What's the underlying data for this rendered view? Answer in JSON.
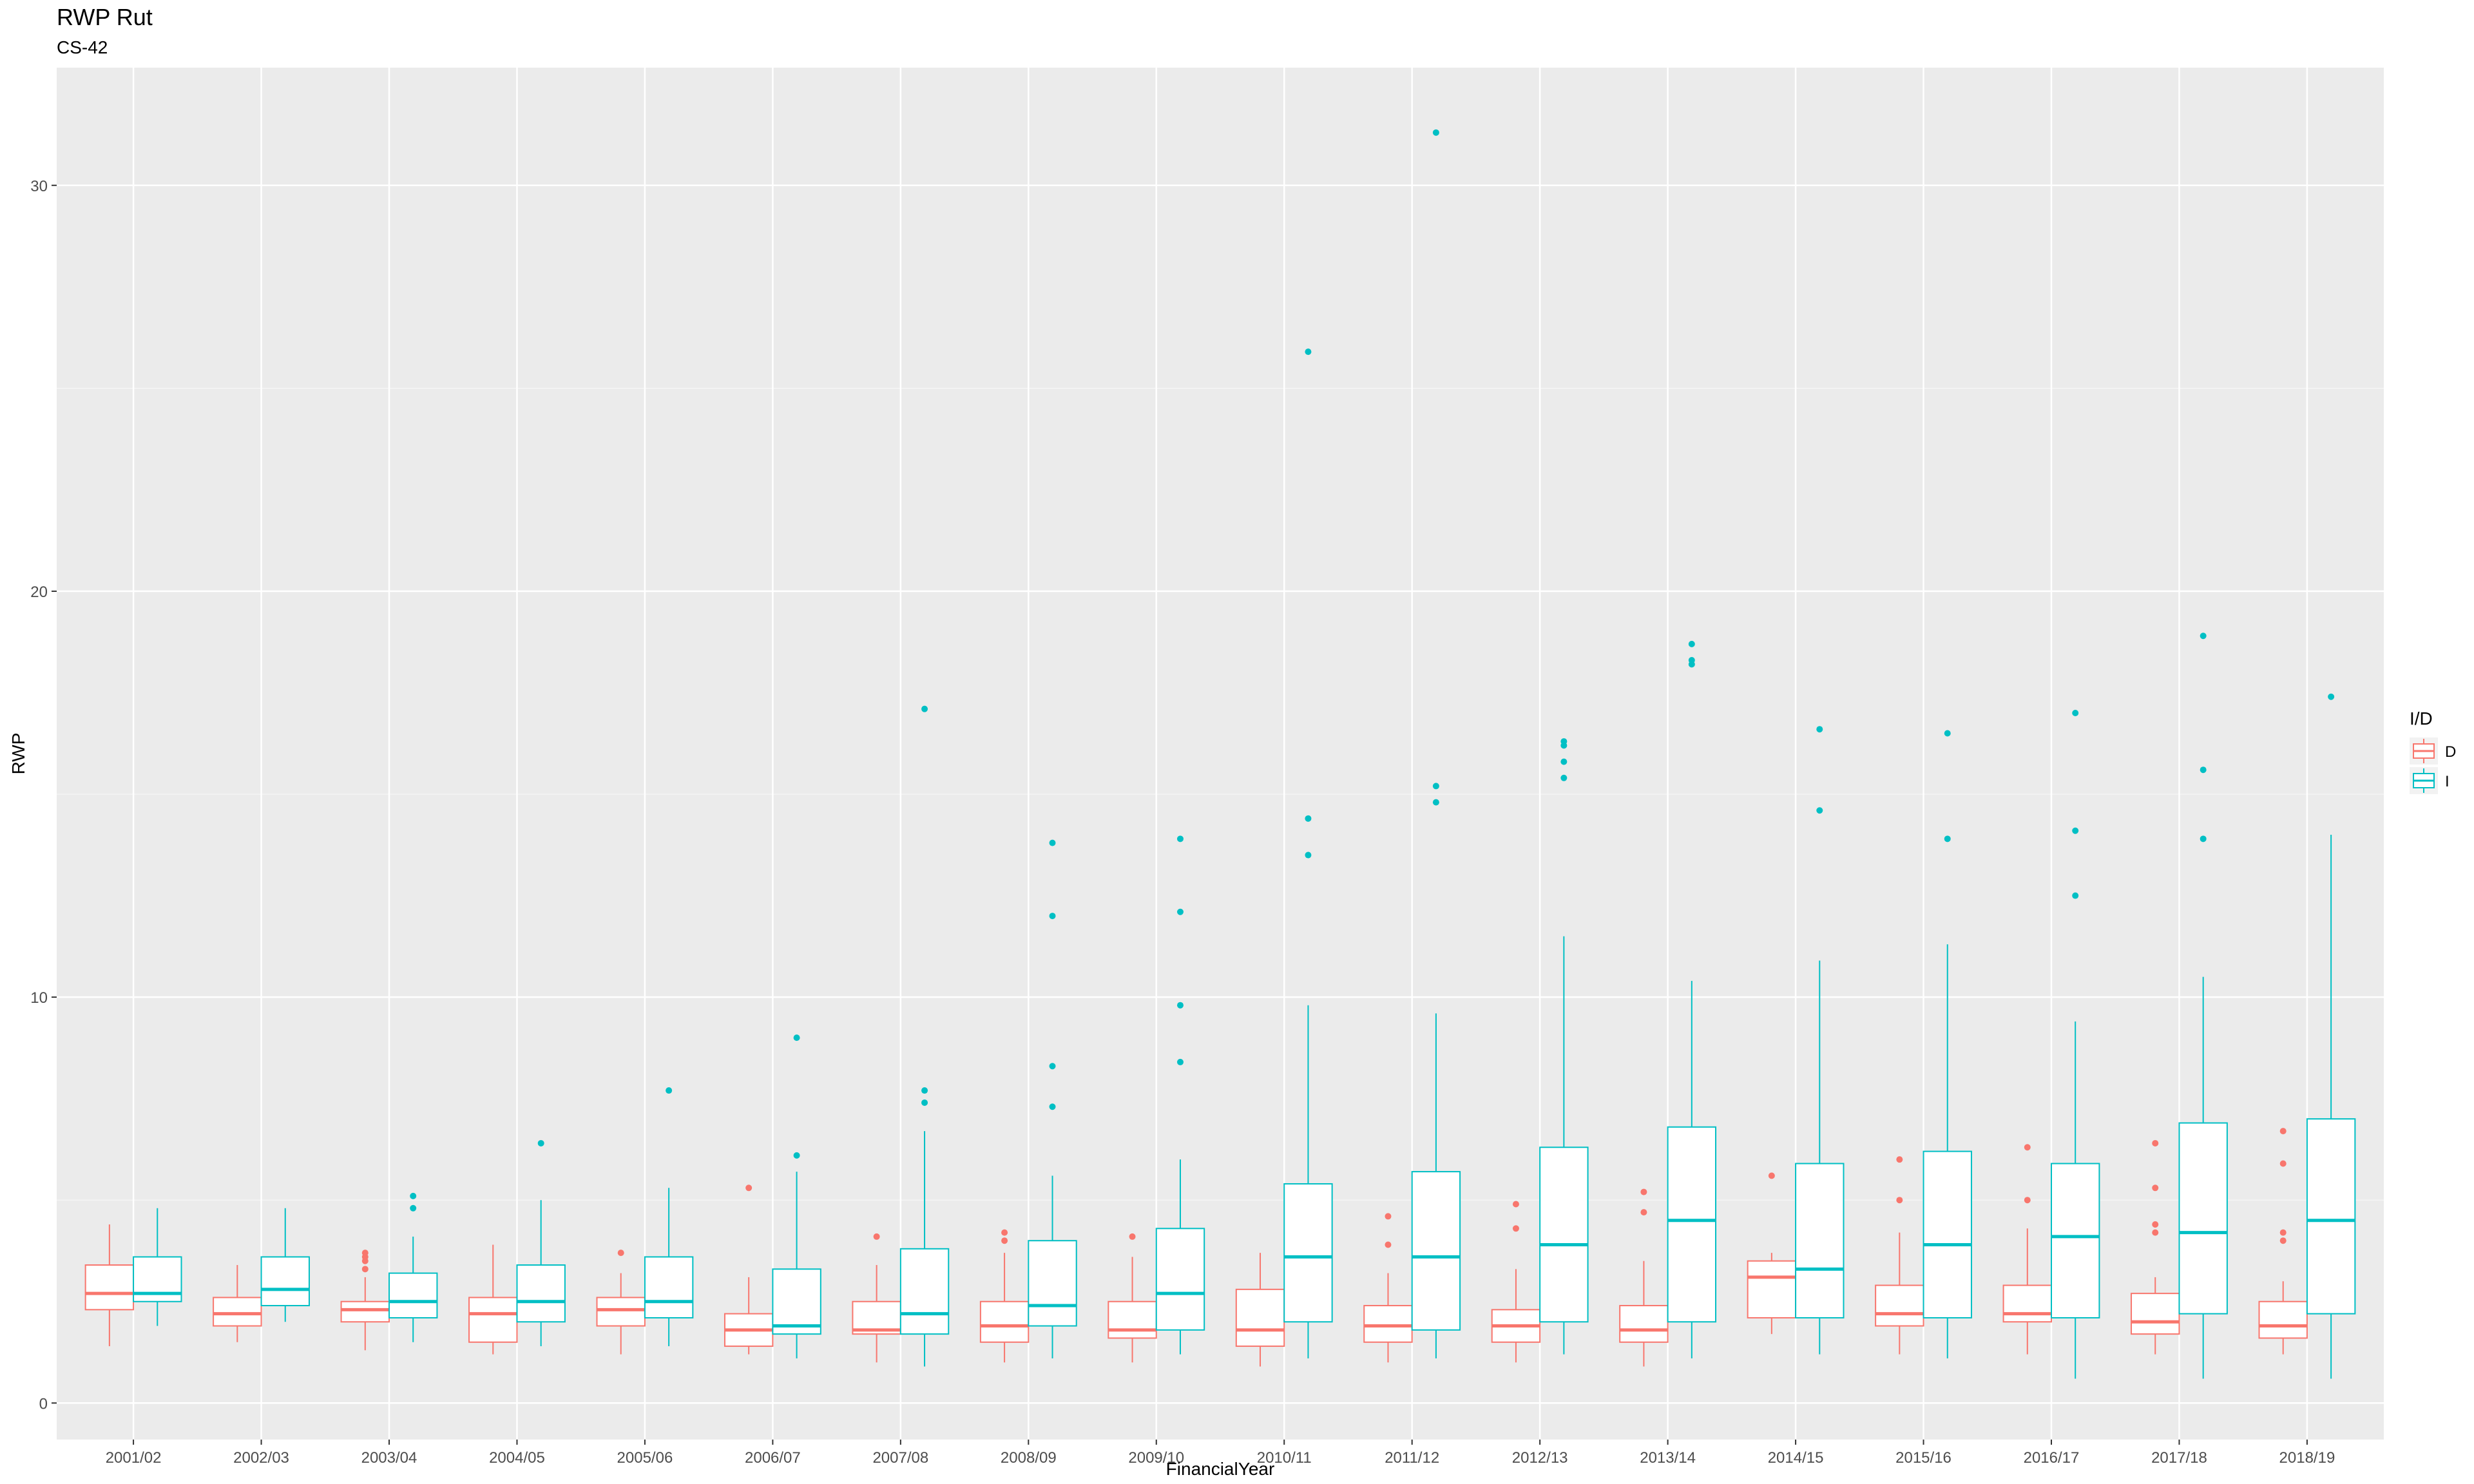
{
  "chart_data": {
    "type": "boxplot",
    "title": "RWP Rut",
    "subtitle": "CS-42",
    "xlabel": "FinancialYear",
    "ylabel": "RWP",
    "ylim": [
      -0.9,
      32.9
    ],
    "yticks": [
      0,
      10,
      20,
      30
    ],
    "grid": true,
    "legend": {
      "title": "I/D",
      "position": "right",
      "entries": [
        "D",
        "I"
      ]
    },
    "colors": {
      "D": "#F8766D",
      "I": "#00BFC4",
      "panel": "#EBEBEB",
      "grid": "#FFFFFF"
    },
    "categories": [
      "2001/02",
      "2002/03",
      "2003/04",
      "2004/05",
      "2005/06",
      "2006/07",
      "2007/08",
      "2008/09",
      "2009/10",
      "2010/11",
      "2011/12",
      "2012/13",
      "2013/14",
      "2014/15",
      "2015/16",
      "2016/17",
      "2017/18",
      "2018/19"
    ],
    "series": [
      {
        "name": "D",
        "boxes": [
          {
            "lw": 1.4,
            "q1": 2.3,
            "med": 2.7,
            "q3": 3.4,
            "hw": 4.4,
            "out": []
          },
          {
            "lw": 1.5,
            "q1": 1.9,
            "med": 2.2,
            "q3": 2.6,
            "hw": 3.4,
            "out": []
          },
          {
            "lw": 1.3,
            "q1": 2.0,
            "med": 2.3,
            "q3": 2.5,
            "hw": 3.1,
            "out": [
              3.3,
              3.5,
              3.6,
              3.7
            ]
          },
          {
            "lw": 1.2,
            "q1": 1.5,
            "med": 2.2,
            "q3": 2.6,
            "hw": 3.9,
            "out": []
          },
          {
            "lw": 1.2,
            "q1": 1.9,
            "med": 2.3,
            "q3": 2.6,
            "hw": 3.2,
            "out": [
              3.7
            ]
          },
          {
            "lw": 1.2,
            "q1": 1.4,
            "med": 1.8,
            "q3": 2.2,
            "hw": 3.1,
            "out": [
              5.3
            ]
          },
          {
            "lw": 1.0,
            "q1": 1.7,
            "med": 1.8,
            "q3": 2.5,
            "hw": 3.4,
            "out": [
              4.1
            ]
          },
          {
            "lw": 1.0,
            "q1": 1.5,
            "med": 1.9,
            "q3": 2.5,
            "hw": 3.7,
            "out": [
              4.0,
              4.2
            ]
          },
          {
            "lw": 1.0,
            "q1": 1.6,
            "med": 1.8,
            "q3": 2.5,
            "hw": 3.6,
            "out": [
              4.1
            ]
          },
          {
            "lw": 0.9,
            "q1": 1.4,
            "med": 1.8,
            "q3": 2.8,
            "hw": 3.7,
            "out": []
          },
          {
            "lw": 1.0,
            "q1": 1.5,
            "med": 1.9,
            "q3": 2.4,
            "hw": 3.2,
            "out": [
              3.9,
              4.6
            ]
          },
          {
            "lw": 1.0,
            "q1": 1.5,
            "med": 1.9,
            "q3": 2.3,
            "hw": 3.3,
            "out": [
              4.3,
              4.9
            ]
          },
          {
            "lw": 0.9,
            "q1": 1.5,
            "med": 1.8,
            "q3": 2.4,
            "hw": 3.5,
            "out": [
              4.7,
              5.2
            ]
          },
          {
            "lw": 1.7,
            "q1": 2.1,
            "med": 3.1,
            "q3": 3.5,
            "hw": 3.7,
            "out": [
              5.6
            ]
          },
          {
            "lw": 1.2,
            "q1": 1.9,
            "med": 2.2,
            "q3": 2.9,
            "hw": 4.2,
            "out": [
              5.0,
              6.0
            ]
          },
          {
            "lw": 1.2,
            "q1": 2.0,
            "med": 2.2,
            "q3": 2.9,
            "hw": 4.3,
            "out": [
              5.0,
              6.3
            ]
          },
          {
            "lw": 1.2,
            "q1": 1.7,
            "med": 2.0,
            "q3": 2.7,
            "hw": 3.1,
            "out": [
              4.2,
              4.4,
              5.3,
              6.4
            ]
          },
          {
            "lw": 1.2,
            "q1": 1.6,
            "med": 1.9,
            "q3": 2.5,
            "hw": 3.0,
            "out": [
              4.0,
              4.2,
              5.9,
              6.7
            ]
          }
        ]
      },
      {
        "name": "I",
        "boxes": [
          {
            "lw": 1.9,
            "q1": 2.5,
            "med": 2.7,
            "q3": 3.6,
            "hw": 4.8,
            "out": []
          },
          {
            "lw": 2.0,
            "q1": 2.4,
            "med": 2.8,
            "q3": 3.6,
            "hw": 4.8,
            "out": []
          },
          {
            "lw": 1.5,
            "q1": 2.1,
            "med": 2.5,
            "q3": 3.2,
            "hw": 4.1,
            "out": [
              4.8,
              5.1
            ]
          },
          {
            "lw": 1.4,
            "q1": 2.0,
            "med": 2.5,
            "q3": 3.4,
            "hw": 5.0,
            "out": [
              6.4
            ]
          },
          {
            "lw": 1.4,
            "q1": 2.1,
            "med": 2.5,
            "q3": 3.6,
            "hw": 5.3,
            "out": [
              7.7
            ]
          },
          {
            "lw": 1.1,
            "q1": 1.7,
            "med": 1.9,
            "q3": 3.3,
            "hw": 5.7,
            "out": [
              6.1,
              9.0
            ]
          },
          {
            "lw": 0.9,
            "q1": 1.7,
            "med": 2.2,
            "q3": 3.8,
            "hw": 6.7,
            "out": [
              7.4,
              7.7,
              17.1
            ]
          },
          {
            "lw": 1.1,
            "q1": 1.9,
            "med": 2.4,
            "q3": 4.0,
            "hw": 5.6,
            "out": [
              7.3,
              8.3,
              12.0,
              13.8
            ]
          },
          {
            "lw": 1.2,
            "q1": 1.8,
            "med": 2.7,
            "q3": 4.3,
            "hw": 6.0,
            "out": [
              8.4,
              9.8,
              12.1,
              13.9
            ]
          },
          {
            "lw": 1.1,
            "q1": 2.0,
            "med": 3.6,
            "q3": 5.4,
            "hw": 9.8,
            "out": [
              13.5,
              14.4,
              25.9
            ]
          },
          {
            "lw": 1.1,
            "q1": 1.8,
            "med": 3.6,
            "q3": 5.7,
            "hw": 9.6,
            "out": [
              14.8,
              15.2,
              31.3
            ]
          },
          {
            "lw": 1.2,
            "q1": 2.0,
            "med": 3.9,
            "q3": 6.3,
            "hw": 11.5,
            "out": [
              15.4,
              15.8,
              16.2,
              16.3
            ]
          },
          {
            "lw": 1.1,
            "q1": 2.0,
            "med": 4.5,
            "q3": 6.8,
            "hw": 10.4,
            "out": [
              18.2,
              18.3,
              18.7
            ]
          },
          {
            "lw": 1.2,
            "q1": 2.1,
            "med": 3.3,
            "q3": 5.9,
            "hw": 10.9,
            "out": [
              14.6,
              16.6
            ]
          },
          {
            "lw": 1.1,
            "q1": 2.1,
            "med": 3.9,
            "q3": 6.2,
            "hw": 11.3,
            "out": [
              13.9,
              16.5
            ]
          },
          {
            "lw": 0.6,
            "q1": 2.1,
            "med": 4.1,
            "q3": 5.9,
            "hw": 9.4,
            "out": [
              12.5,
              14.1,
              17.0
            ]
          },
          {
            "lw": 0.6,
            "q1": 2.2,
            "med": 4.2,
            "q3": 6.9,
            "hw": 10.5,
            "out": [
              13.9,
              15.6,
              18.9
            ]
          },
          {
            "lw": 0.6,
            "q1": 2.2,
            "med": 4.5,
            "q3": 7.0,
            "hw": 14.0,
            "out": [
              17.4
            ]
          }
        ]
      }
    ]
  }
}
